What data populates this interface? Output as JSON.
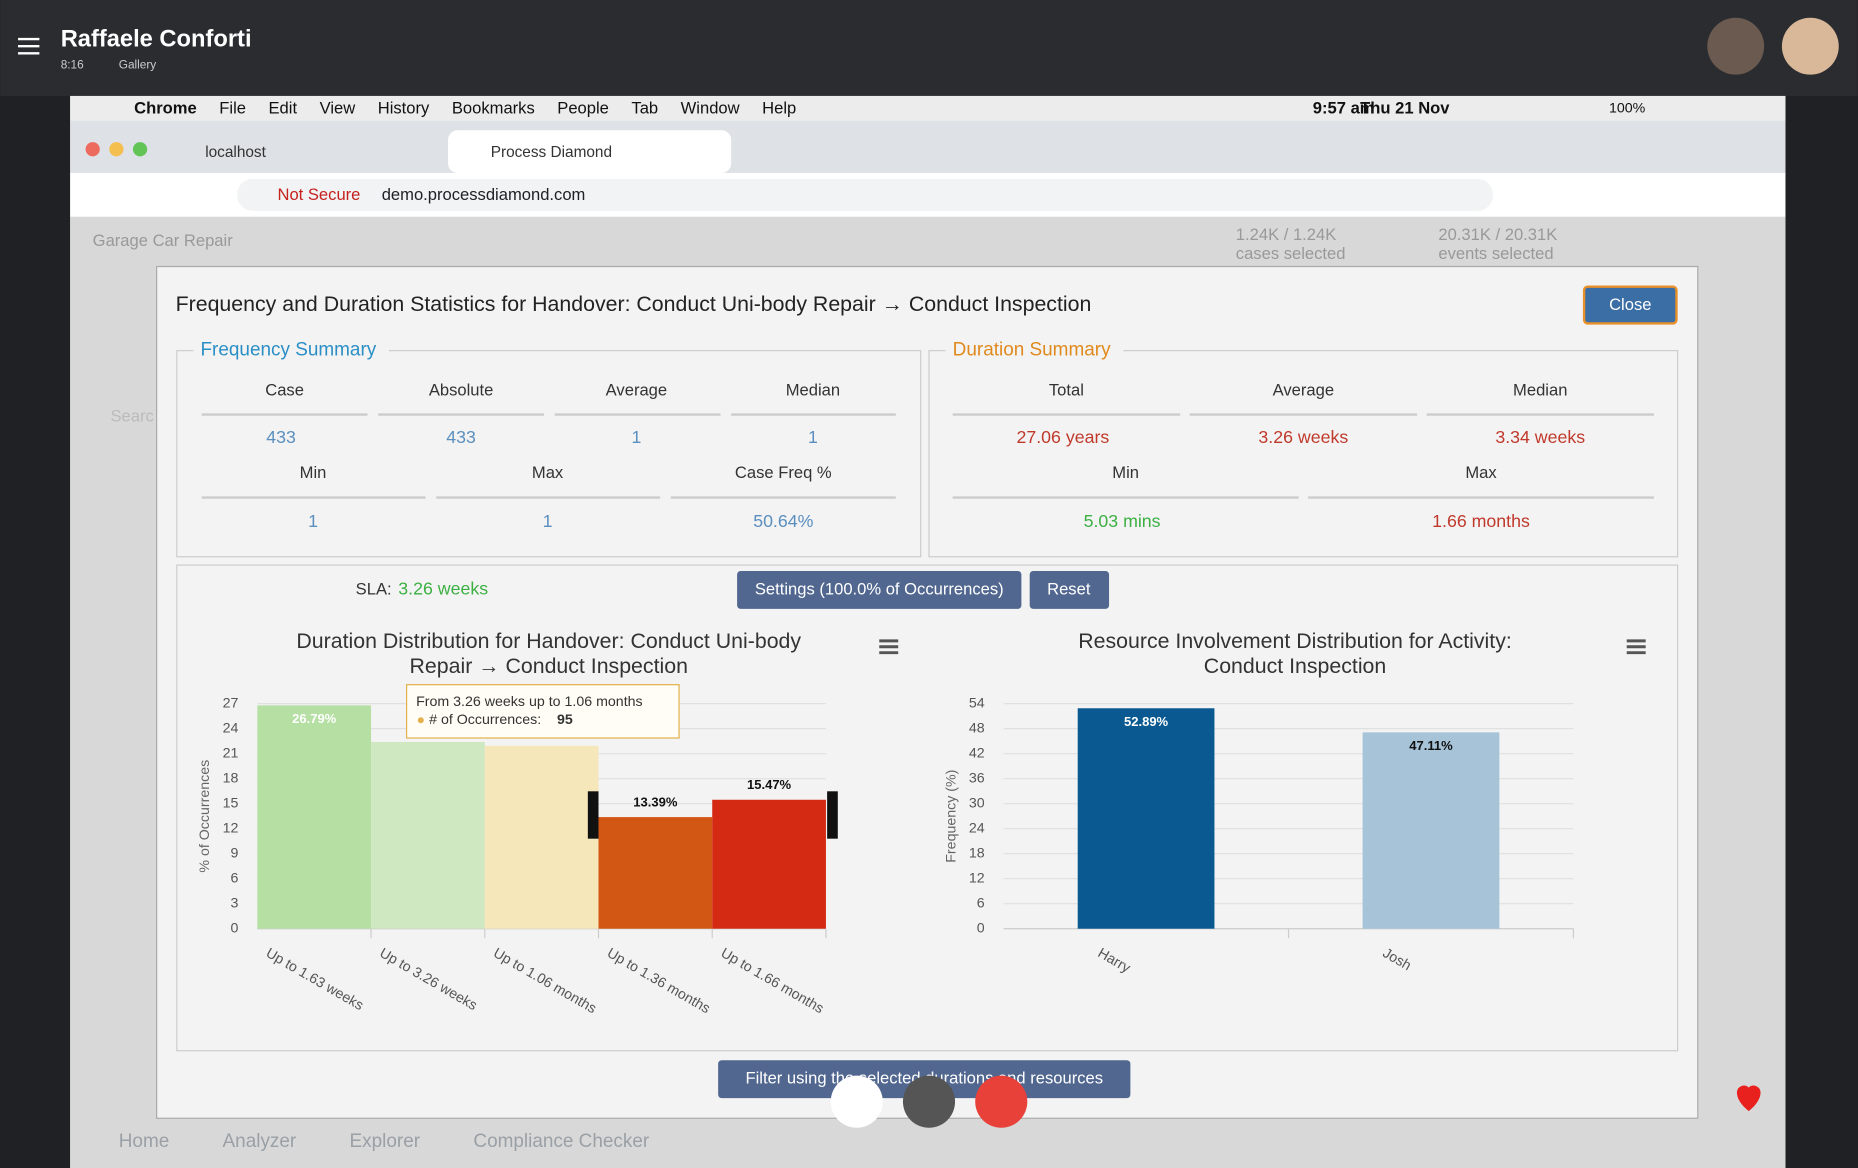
{
  "header": {
    "name": "Raffaele Conforti",
    "time": "8:16",
    "gallery": "Gallery"
  },
  "menubar": {
    "items": [
      "Chrome",
      "File",
      "Edit",
      "View",
      "History",
      "Bookmarks",
      "People",
      "Tab",
      "Window",
      "Help"
    ],
    "time": "9:57 am",
    "date": "Thu 21 Nov",
    "battery": "100%"
  },
  "tabs": [
    "localhost",
    "Process Diamond"
  ],
  "address": {
    "warning": "Not Secure",
    "url": "demo.processdiamond.com"
  },
  "app": {
    "title": "Garage Car Repair",
    "cases": "1.24K / 1.24K",
    "cases_label": "cases selected",
    "events": "20.31K / 20.31K",
    "events_label": "events selected",
    "search": "Searc"
  },
  "modal": {
    "title": "Frequency and Duration Statistics for Handover: Conduct Uni-body Repair → Conduct Inspection",
    "close": "Close",
    "frequency": {
      "legend": "Frequency Summary",
      "headers": [
        "Case",
        "Absolute",
        "Average",
        "Median"
      ],
      "values": [
        "433",
        "433",
        "1",
        "1"
      ],
      "headers2": [
        "Min",
        "Max",
        "Case Freq %"
      ],
      "values2": [
        "1",
        "1",
        "50.64%"
      ]
    },
    "duration": {
      "legend": "Duration Summary",
      "headers": [
        "Total",
        "Average",
        "Median"
      ],
      "values": [
        "27.06 years",
        "3.26 weeks",
        "3.34 weeks"
      ],
      "headers2": [
        "Min",
        "Max"
      ],
      "values2": [
        "5.03 mins",
        "1.66 months"
      ]
    },
    "sla_label": "SLA:",
    "sla": "3.26 weeks",
    "settings": "Settings (100.0% of Occurrences)",
    "reset": "Reset",
    "filter": "Filter using the selected durations and resources"
  },
  "bottom_tabs": [
    "Home",
    "Analyzer",
    "Explorer",
    "Compliance Checker"
  ],
  "chart_data": [
    {
      "type": "bar",
      "title": "Duration Distribution for Handover: Conduct Uni-body Repair → Conduct Inspection",
      "y_label": "% of Occurrences",
      "categories": [
        "Up to 1.63 weeks",
        "Up to 3.26 weeks",
        "Up to 1.06 months",
        "Up to 1.36 months",
        "Up to 1.66 months"
      ],
      "values": [
        26.79,
        22.4,
        21.94,
        13.39,
        15.47
      ],
      "value_labels": [
        "26.79%",
        null,
        null,
        "13.39%",
        "15.47%"
      ],
      "colors": [
        "#b5dfa3",
        "#cfe8c1",
        "#f6e7ba",
        "#d35714",
        "#d42a14"
      ],
      "ylim": [
        0,
        27
      ],
      "yticks": [
        0,
        3,
        6,
        9,
        12,
        15,
        18,
        21,
        24,
        27
      ],
      "grid": true,
      "tooltip": {
        "range": "From 3.26 weeks up to 1.06 months",
        "label": "# of Occurrences:",
        "value": "95"
      }
    },
    {
      "type": "bar",
      "title": "Resource Involvement Distribution for Activity: Conduct Inspection",
      "y_label": "Frequency (%)",
      "categories": [
        "Harry",
        "Josh"
      ],
      "values": [
        52.89,
        47.11
      ],
      "value_labels": [
        "52.89%",
        "47.11%"
      ],
      "colors": [
        "#0a5a91",
        "#a6c3d8"
      ],
      "ylim": [
        0,
        54
      ],
      "yticks": [
        0,
        6,
        12,
        18,
        24,
        30,
        36,
        42,
        48,
        54
      ],
      "grid": true
    }
  ]
}
